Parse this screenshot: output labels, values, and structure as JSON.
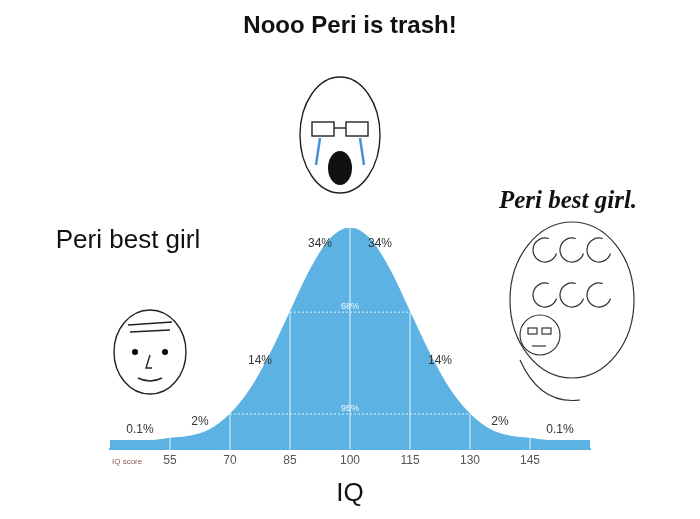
{
  "chart_data": {
    "type": "area",
    "title": "Nooo Peri is trash!",
    "xlabel": "IQ",
    "x": [
      40,
      45,
      50,
      55,
      60,
      65,
      70,
      75,
      80,
      85,
      90,
      95,
      100,
      105,
      110,
      115,
      120,
      125,
      130,
      135,
      140,
      145,
      150,
      155,
      160
    ],
    "values": [
      4,
      4,
      4,
      5,
      6,
      9,
      16,
      27,
      43,
      62,
      81,
      95,
      100,
      95,
      81,
      62,
      43,
      27,
      16,
      9,
      6,
      5,
      4,
      4,
      4
    ],
    "color": "#5cb3e3",
    "xlim": [
      40,
      160
    ],
    "xticks": [
      55,
      70,
      85,
      100,
      115,
      130,
      145
    ],
    "ylim": [
      0,
      100
    ],
    "tick_labels": "x",
    "grid": false,
    "bands": [
      {
        "from": 40,
        "to": 55,
        "value": 0.1,
        "label": "0.1%"
      },
      {
        "from": 55,
        "to": 70,
        "value": 2,
        "label": "2%"
      },
      {
        "from": 70,
        "to": 85,
        "value": 14,
        "label": "14%"
      },
      {
        "from": 85,
        "to": 100,
        "value": 34,
        "label": "34%"
      },
      {
        "from": 100,
        "to": 115,
        "value": 34,
        "label": "34%"
      },
      {
        "from": 115,
        "to": 130,
        "value": 14,
        "label": "14%"
      },
      {
        "from": 130,
        "to": 145,
        "value": 2,
        "label": "2%"
      },
      {
        "from": 145,
        "to": 160,
        "value": 0.1,
        "label": "0.1%"
      }
    ],
    "spans": [
      {
        "from": 85,
        "to": 115,
        "value": 68,
        "label": "68%"
      },
      {
        "from": 70,
        "to": 130,
        "value": 95,
        "label": "95%"
      }
    ],
    "annotations": [
      "Peri best girl",
      "Peri best girl.",
      "IQ score"
    ]
  }
}
